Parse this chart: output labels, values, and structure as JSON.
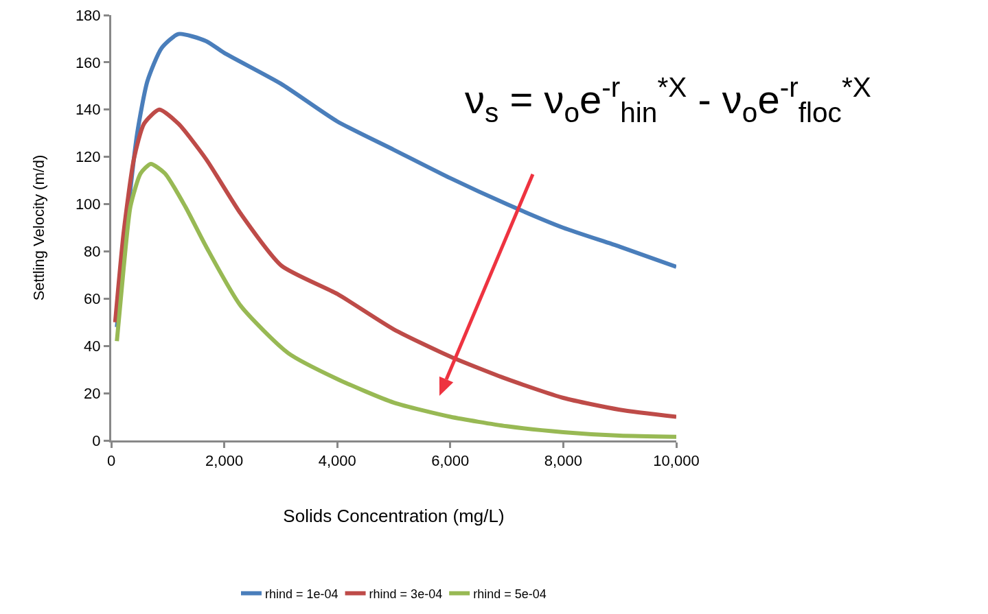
{
  "chart_data": {
    "type": "line",
    "xlabel": "Solids Concentration (mg/L)",
    "ylabel": "Settling Velocity (m/d)",
    "xlim": [
      0,
      10000
    ],
    "xticks": [
      0,
      {
        "value": 2000,
        "label": "2,000"
      },
      {
        "value": 4000,
        "label": "4,000"
      },
      {
        "value": 6000,
        "label": "6,000"
      },
      {
        "value": 8000,
        "label": "8,000"
      },
      {
        "value": 10000,
        "label": "10,000"
      }
    ],
    "ylim": [
      0,
      180
    ],
    "yticks": [
      0,
      20,
      40,
      60,
      80,
      100,
      120,
      140,
      160,
      180
    ],
    "grid": false,
    "legend": "bottom",
    "marker": "none",
    "line_style": "solid",
    "series": [
      {
        "name": "rhind = 1e-04",
        "color": "#4a7ebb",
        "x": [
          100,
          280,
          460,
          640,
          890,
          1190,
          1680,
          2000,
          3000,
          4000,
          5000,
          6000,
          7000,
          8000,
          9000,
          10000
        ],
        "values": [
          48,
          93,
          130,
          152,
          166,
          172,
          169,
          164,
          151,
          135,
          123,
          111,
          100,
          90,
          82,
          73.5
        ]
      },
      {
        "name": "rhind = 3e-04",
        "color": "#be4b48",
        "x": [
          70,
          220,
          400,
          580,
          850,
          1190,
          1680,
          2290,
          3010,
          4000,
          5000,
          6000,
          7000,
          8000,
          9000,
          10000
        ],
        "values": [
          50,
          88,
          119,
          134,
          140,
          134,
          119,
          96,
          74,
          62,
          47,
          35.5,
          26,
          18,
          13,
          10
        ]
      },
      {
        "name": "rhind = 5e-04",
        "color": "#98b954",
        "x": [
          100,
          220,
          340,
          520,
          700,
          950,
          1310,
          1680,
          2290,
          3130,
          4000,
          5000,
          6000,
          7000,
          8000,
          9000,
          10000
        ],
        "values": [
          42,
          73,
          99,
          113,
          117,
          113,
          99,
          82,
          57,
          37,
          26,
          16,
          10,
          6,
          3.5,
          2,
          1.5
        ]
      }
    ],
    "annotations": [
      "ν$_{s}$ = ν$_{o}$e$^{-r}$$_{hin}$$^{*X}$ - ν$_{o}$e$^{-r}$$_{floc}$$^{*X}$"
    ]
  }
}
